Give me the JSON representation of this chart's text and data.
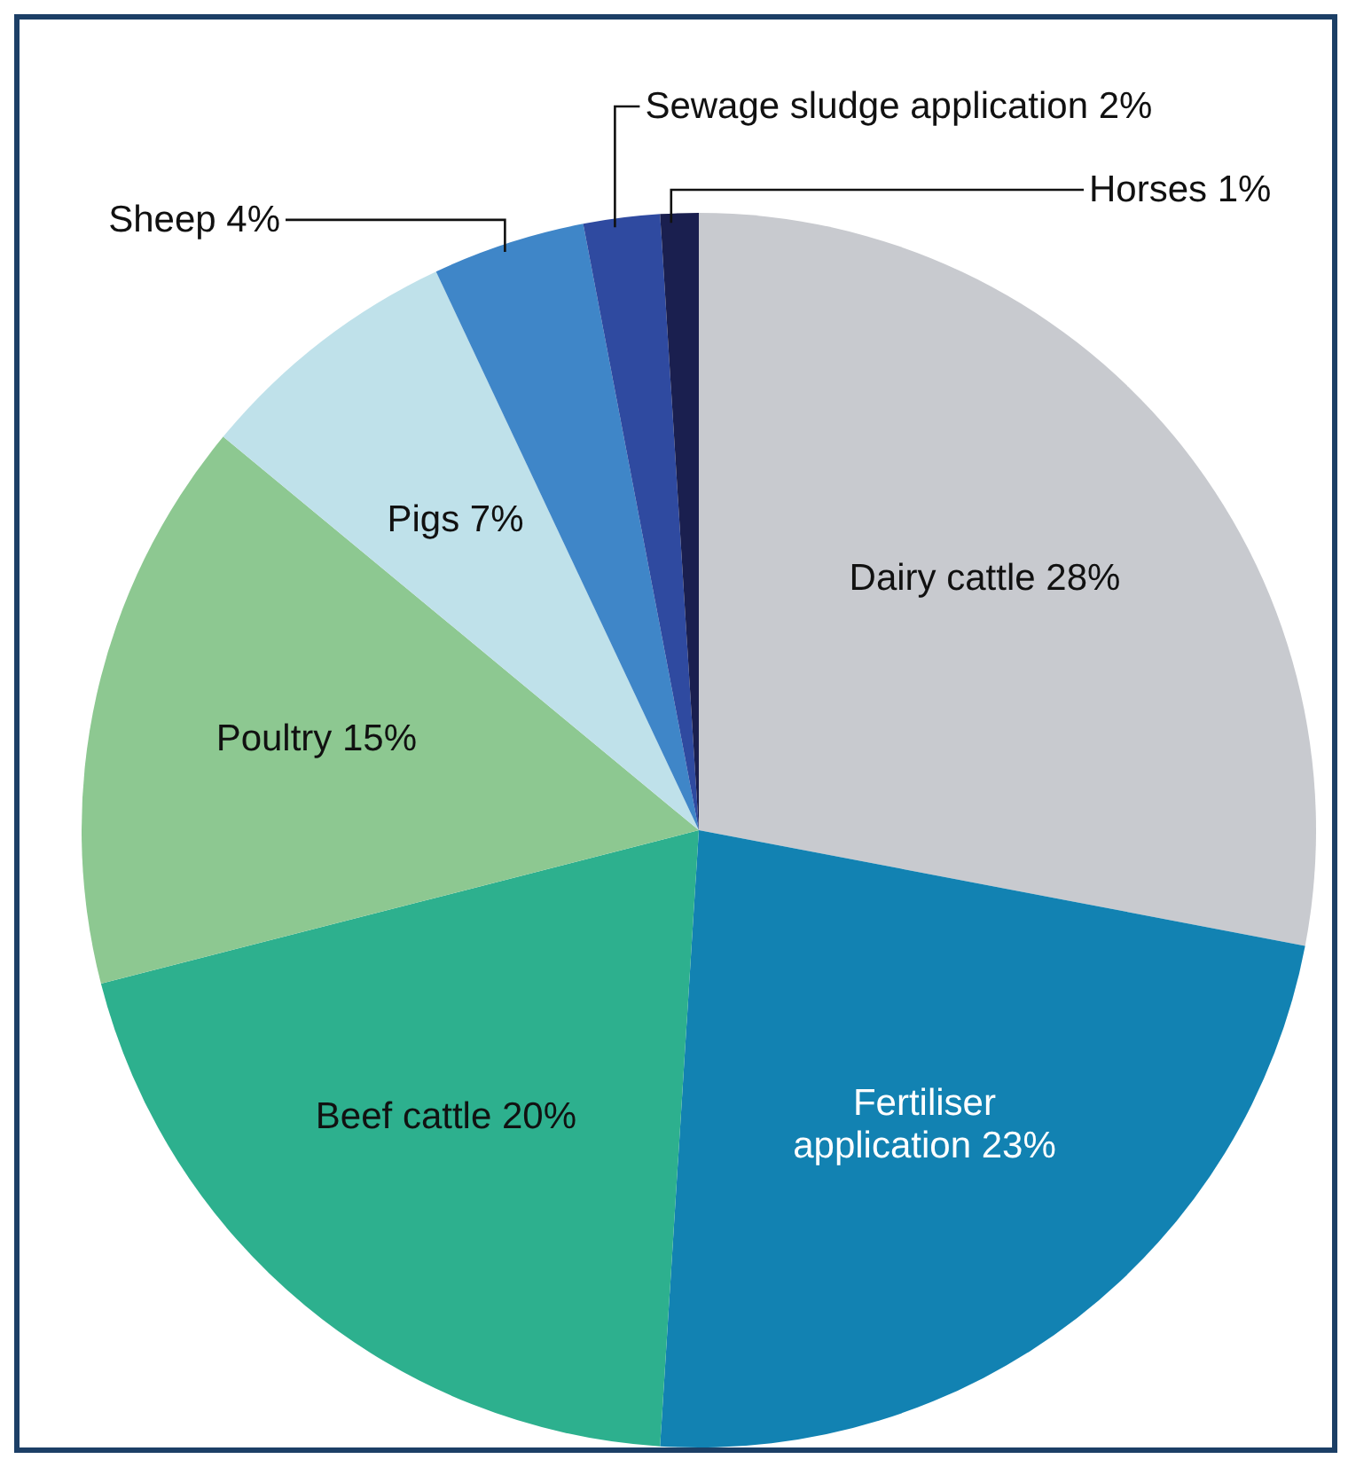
{
  "chart_data": {
    "type": "pie",
    "categories": [
      "Dairy cattle",
      "Fertiliser application",
      "Beef cattle",
      "Poultry",
      "Pigs",
      "Sheep",
      "Sewage sludge application",
      "Horses"
    ],
    "values": [
      28,
      23,
      20,
      15,
      7,
      4,
      2,
      1
    ],
    "value_labels": [
      "28%",
      "23%",
      "20%",
      "15%",
      "7%",
      "4%",
      "2%",
      "1%"
    ],
    "colors": [
      "#c8cacf",
      "#1282b2",
      "#2db08e",
      "#8dc891",
      "#bfe1ea",
      "#3f86c8",
      "#2f4aa0",
      "#1a1f4f"
    ]
  }
}
